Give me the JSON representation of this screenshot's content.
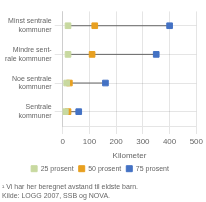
{
  "chart_data": {
    "type": "dot",
    "categories": [
      "Minst sentrale\nkommuner",
      "Mindre sent-\nrale kommuner",
      "Noe sentrale\nkommuner",
      "Sentrale\nkommuner"
    ],
    "series": [
      {
        "name": "25 prosent",
        "color": "#c8d9a0",
        "values": [
          20,
          20,
          15,
          10
        ]
      },
      {
        "name": "50 prosent",
        "color": "#e8a020",
        "values": [
          120,
          110,
          25,
          20
        ]
      },
      {
        "name": "75 prosent",
        "color": "#4472c4",
        "values": [
          400,
          350,
          160,
          60
        ]
      }
    ],
    "xlabel": "Kilometer",
    "xlim": [
      0,
      500
    ],
    "xticks": [
      0,
      100,
      200,
      300,
      400,
      500
    ],
    "grid": true,
    "legend": "bottom",
    "marker": "square",
    "annotations": [
      "¹ Vi har her beregnet avstand til eldste barn.",
      "Kilde: LOGG 2007, SSB og NOVA."
    ]
  }
}
